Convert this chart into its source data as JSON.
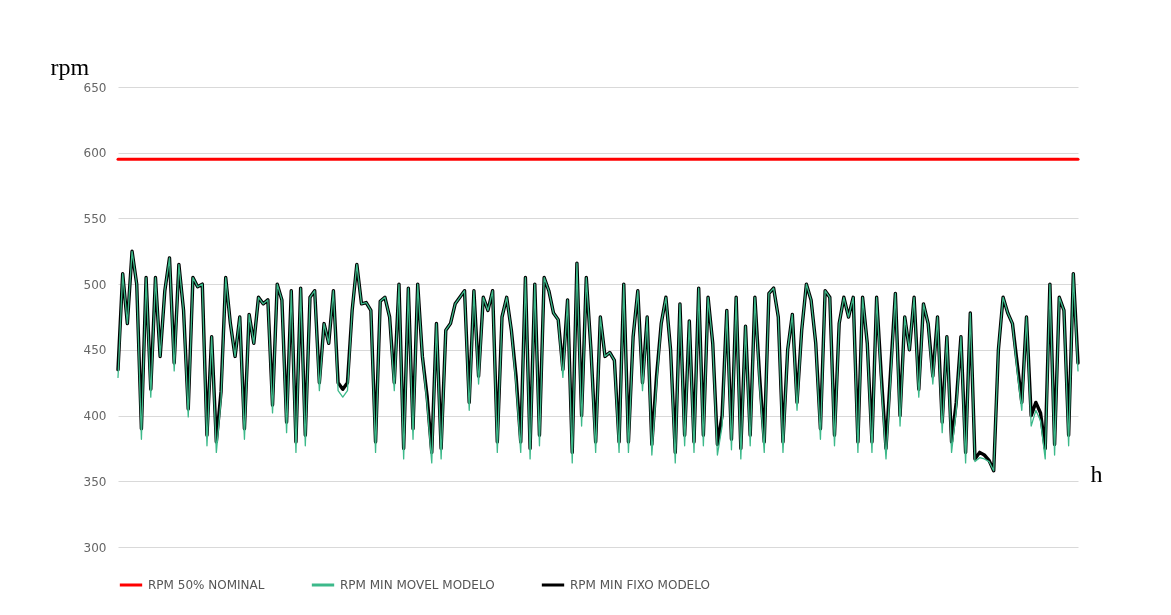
{
  "chart_data": {
    "type": "line",
    "xlabel": "h",
    "ylabel": "rpm",
    "categories": [
      null,
      null,
      null,
      null,
      null,
      null,
      null,
      null,
      null,
      null,
      null,
      null,
      null,
      null,
      null,
      null,
      null,
      null,
      null,
      null,
      null,
      null,
      null,
      null,
      null,
      null,
      null,
      null,
      null,
      null,
      null,
      null,
      null,
      null,
      null,
      null,
      null,
      null,
      null,
      null,
      null,
      null,
      null,
      null,
      null,
      null,
      null,
      null,
      null,
      null,
      null,
      null,
      null,
      null,
      null,
      null,
      null,
      null,
      null,
      null,
      null,
      null,
      null,
      null,
      null,
      null,
      null,
      null,
      null,
      null,
      null,
      null,
      null,
      null,
      null,
      null,
      null,
      null,
      null,
      null,
      null,
      null,
      null,
      null,
      null,
      null,
      null,
      null,
      null,
      null,
      null,
      null,
      null,
      null,
      null,
      null,
      null,
      null,
      null,
      null,
      null,
      null,
      null,
      null,
      null,
      null,
      null,
      null,
      null,
      null,
      null,
      null,
      null,
      null,
      null,
      null,
      null,
      null,
      null,
      null,
      null,
      null,
      null,
      null,
      null,
      null,
      null,
      null,
      null,
      null,
      null,
      null,
      null,
      null,
      null,
      null,
      null,
      null,
      null,
      null,
      null,
      null,
      null,
      null,
      null,
      null,
      null,
      null,
      null,
      null,
      null,
      null,
      null,
      null,
      null,
      null,
      null,
      null,
      null,
      null,
      null,
      null,
      null,
      null,
      null,
      null,
      null,
      null,
      null,
      null,
      null,
      null,
      null,
      null,
      null,
      null,
      null,
      null,
      null,
      null,
      null,
      null,
      null,
      null,
      null,
      null,
      null,
      null,
      null,
      null,
      null,
      null,
      null,
      null,
      null,
      null,
      null,
      null,
      null,
      null,
      null,
      null,
      null,
      null,
      null,
      null
    ],
    "series": [
      {
        "name": "RPM 50% NOMINAL",
        "color": "#ff0000",
        "values": [
          595,
          595,
          595,
          595,
          595,
          595,
          595,
          595,
          595,
          595,
          595,
          595,
          595,
          595,
          595,
          595,
          595,
          595,
          595,
          595,
          595,
          595,
          595,
          595,
          595,
          595,
          595,
          595,
          595,
          595,
          595,
          595,
          595,
          595,
          595,
          595,
          595,
          595,
          595,
          595,
          595,
          595,
          595,
          595,
          595,
          595,
          595,
          595,
          595,
          595,
          595,
          595,
          595,
          595,
          595,
          595,
          595,
          595,
          595,
          595,
          595,
          595,
          595,
          595,
          595,
          595,
          595,
          595,
          595,
          595,
          595,
          595,
          595,
          595,
          595,
          595,
          595,
          595,
          595,
          595,
          595,
          595,
          595,
          595,
          595,
          595,
          595,
          595,
          595,
          595,
          595,
          595,
          595,
          595,
          595,
          595,
          595,
          595,
          595,
          595,
          595,
          595,
          595,
          595,
          595,
          595,
          595,
          595,
          595,
          595,
          595,
          595,
          595,
          595,
          595,
          595,
          595,
          595,
          595,
          595,
          595,
          595,
          595,
          595,
          595,
          595,
          595,
          595,
          595,
          595,
          595,
          595,
          595,
          595,
          595,
          595,
          595,
          595,
          595,
          595,
          595,
          595,
          595,
          595,
          595,
          595,
          595,
          595,
          595,
          595,
          595,
          595,
          595,
          595,
          595,
          595,
          595,
          595,
          595,
          595,
          595,
          595,
          595,
          595,
          595,
          595,
          595,
          595,
          595,
          595,
          595,
          595,
          595,
          595,
          595,
          595,
          595,
          595,
          595,
          595,
          595,
          595,
          595,
          595,
          595,
          595,
          595,
          595,
          595,
          595,
          595,
          595,
          595,
          595,
          595,
          595,
          595,
          595,
          595,
          595,
          595,
          595,
          595,
          595,
          595,
          595
        ]
      },
      {
        "name": "RPM MIN MOVEL MODELO",
        "color": "#3cb98a",
        "values": [
          429,
          508,
          470,
          525,
          500,
          382,
          505,
          414,
          505,
          445,
          495,
          520,
          434,
          515,
          480,
          399,
          505,
          498,
          500,
          377,
          460,
          372,
          412,
          505,
          470,
          445,
          475,
          382,
          477,
          455,
          490,
          485,
          488,
          402,
          500,
          488,
          387,
          495,
          372,
          497,
          377,
          490,
          495,
          419,
          470,
          455,
          495,
          419,
          414,
          419,
          480,
          515,
          485,
          486,
          480,
          372,
          487,
          490,
          475,
          419,
          500,
          367,
          497,
          382,
          500,
          445,
          409,
          364,
          470,
          367,
          465,
          470,
          485,
          490,
          495,
          404,
          495,
          424,
          490,
          480,
          495,
          372,
          475,
          490,
          465,
          424,
          372,
          505,
          367,
          500,
          377,
          505,
          495,
          478,
          473,
          429,
          488,
          364,
          516,
          392,
          505,
          450,
          372,
          475,
          445,
          448,
          442,
          372,
          500,
          372,
          460,
          495,
          419,
          475,
          370,
          424,
          470,
          490,
          450,
          364,
          485,
          377,
          472,
          372,
          497,
          377,
          490,
          455,
          370,
          392,
          480,
          374,
          490,
          367,
          468,
          377,
          490,
          424,
          372,
          493,
          497,
          475,
          372,
          450,
          477,
          404,
          465,
          500,
          488,
          455,
          382,
          495,
          490,
          377,
          470,
          490,
          475,
          490,
          372,
          490,
          455,
          372,
          490,
          424,
          367,
          429,
          493,
          392,
          475,
          450,
          490,
          414,
          485,
          470,
          424,
          475,
          387,
          460,
          372,
          404,
          460,
          364,
          478,
          365,
          368,
          367,
          365,
          358,
          450,
          490,
          478,
          470,
          434,
          404,
          475,
          392,
          404,
          396,
          367,
          500,
          370,
          490,
          480,
          377,
          508,
          434
        ]
      },
      {
        "name": "RPM MIN FIXO MODELO",
        "color": "#000000",
        "values": [
          435,
          508,
          470,
          525,
          500,
          390,
          505,
          420,
          505,
          445,
          495,
          520,
          440,
          515,
          480,
          405,
          505,
          498,
          500,
          385,
          460,
          380,
          418,
          505,
          470,
          445,
          475,
          390,
          477,
          455,
          490,
          485,
          488,
          408,
          500,
          488,
          395,
          495,
          380,
          497,
          385,
          490,
          495,
          425,
          470,
          455,
          495,
          425,
          420,
          425,
          480,
          515,
          485,
          486,
          480,
          380,
          487,
          490,
          475,
          425,
          500,
          375,
          497,
          390,
          500,
          445,
          415,
          372,
          470,
          375,
          465,
          470,
          485,
          490,
          495,
          410,
          495,
          430,
          490,
          480,
          495,
          380,
          475,
          490,
          465,
          430,
          380,
          505,
          375,
          500,
          385,
          505,
          495,
          478,
          473,
          435,
          488,
          372,
          516,
          400,
          505,
          450,
          380,
          475,
          445,
          448,
          442,
          380,
          500,
          380,
          460,
          495,
          425,
          475,
          378,
          430,
          470,
          490,
          450,
          372,
          485,
          385,
          472,
          380,
          497,
          385,
          490,
          455,
          378,
          400,
          480,
          382,
          490,
          375,
          468,
          385,
          490,
          430,
          380,
          493,
          497,
          475,
          380,
          450,
          477,
          410,
          465,
          500,
          488,
          455,
          390,
          495,
          490,
          385,
          470,
          490,
          475,
          490,
          380,
          490,
          455,
          380,
          490,
          430,
          375,
          435,
          493,
          400,
          475,
          450,
          490,
          420,
          485,
          470,
          430,
          475,
          395,
          460,
          380,
          410,
          460,
          372,
          478,
          367,
          372,
          370,
          366,
          358,
          450,
          490,
          478,
          470,
          440,
          410,
          475,
          400,
          410,
          402,
          375,
          500,
          378,
          490,
          480,
          385,
          508,
          440
        ]
      }
    ],
    "ylim": [
      300,
      650
    ],
    "yticks": [
      300,
      350,
      400,
      450,
      500,
      550,
      600,
      650
    ],
    "grid": "y",
    "legend": "bottom",
    "tick_labels": "y",
    "marker": "none",
    "line_style": "solid"
  }
}
